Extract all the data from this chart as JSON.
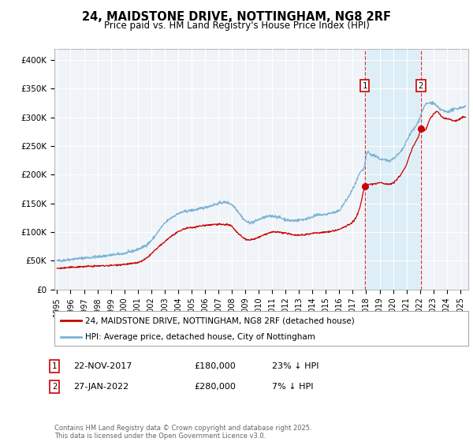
{
  "title": "24, MAIDSTONE DRIVE, NOTTINGHAM, NG8 2RF",
  "subtitle": "Price paid vs. HM Land Registry's House Price Index (HPI)",
  "hpi_color": "#7ab3d4",
  "price_color": "#cc0000",
  "background_color": "#f0f4f8",
  "grid_color": "#ffffff",
  "span_color": "#ddeef7",
  "ylim": [
    0,
    420000
  ],
  "xlim_start": 1994.8,
  "xlim_end": 2025.6,
  "yticks": [
    0,
    50000,
    100000,
    150000,
    200000,
    250000,
    300000,
    350000,
    400000
  ],
  "ytick_labels": [
    "£0",
    "£50K",
    "£100K",
    "£150K",
    "£200K",
    "£250K",
    "£300K",
    "£350K",
    "£400K"
  ],
  "xticks": [
    1995,
    1996,
    1997,
    1998,
    1999,
    2000,
    2001,
    2002,
    2003,
    2004,
    2005,
    2006,
    2007,
    2008,
    2009,
    2010,
    2011,
    2012,
    2013,
    2014,
    2015,
    2016,
    2017,
    2018,
    2019,
    2020,
    2021,
    2022,
    2023,
    2024,
    2025
  ],
  "sale1_x": 2017.9,
  "sale1_y": 180000,
  "sale1_label": "1",
  "sale1_date": "22-NOV-2017",
  "sale1_price": "£180,000",
  "sale1_hpi": "23% ↓ HPI",
  "sale2_x": 2022.07,
  "sale2_y": 280000,
  "sale2_label": "2",
  "sale2_date": "27-JAN-2022",
  "sale2_price": "£280,000",
  "sale2_hpi": "7% ↓ HPI",
  "legend_label_price": "24, MAIDSTONE DRIVE, NOTTINGHAM, NG8 2RF (detached house)",
  "legend_label_hpi": "HPI: Average price, detached house, City of Nottingham",
  "footer": "Contains HM Land Registry data © Crown copyright and database right 2025.\nThis data is licensed under the Open Government Licence v3.0."
}
